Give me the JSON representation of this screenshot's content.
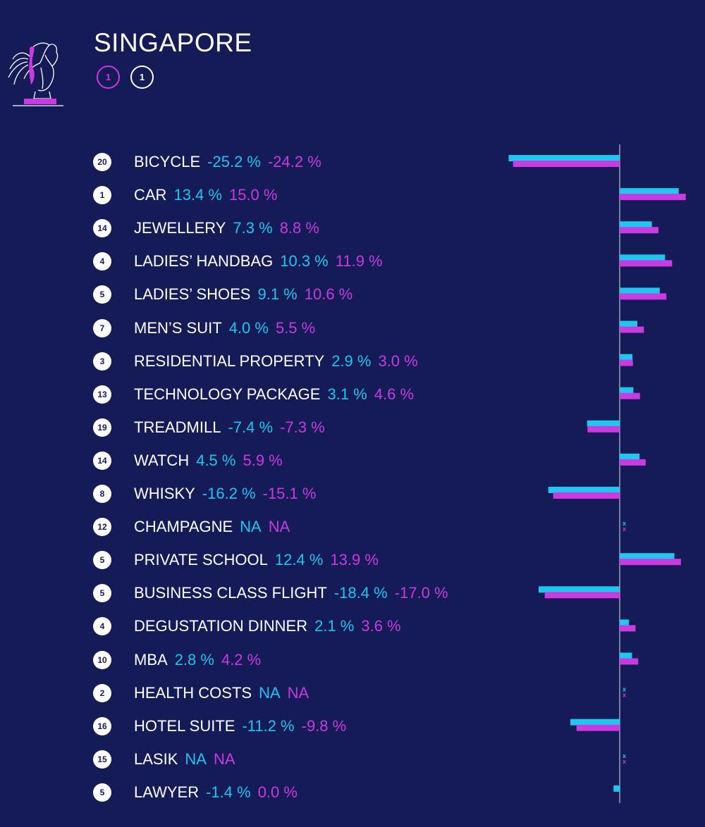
{
  "title": "SINGAPORE",
  "ranks": {
    "magenta": "1",
    "white": "1"
  },
  "colors": {
    "background": "#141b57",
    "cyan": "#1fc6ee",
    "magenta": "#c93ae0",
    "axis": "#9aa0b8"
  },
  "chart_data": {
    "type": "bar",
    "orientation": "horizontal",
    "categories": [
      "BICYCLE",
      "CAR",
      "JEWELLERY",
      "LADIES’ HANDBAG",
      "LADIES’ SHOES",
      "MEN’S SUIT",
      "RESIDENTIAL PROPERTY",
      "TECHNOLOGY PACKAGE",
      "TREADMILL",
      "WATCH",
      "WHISKY",
      "CHAMPAGNE",
      "PRIVATE SCHOOL",
      "BUSINESS CLASS FLIGHT",
      "DEGUSTATION DINNER",
      "MBA",
      "HEALTH COSTS",
      "HOTEL SUITE",
      "LASIK",
      "LAWYER"
    ],
    "ranks": [
      "20",
      "1",
      "14",
      "4",
      "5",
      "7",
      "3",
      "13",
      "19",
      "14",
      "8",
      "12",
      "5",
      "5",
      "4",
      "10",
      "2",
      "16",
      "15",
      "5"
    ],
    "series": [
      {
        "values": [
          -25.2,
          13.4,
          7.3,
          10.3,
          9.1,
          4.0,
          2.9,
          3.1,
          -7.4,
          4.5,
          -16.2,
          null,
          12.4,
          -18.4,
          2.1,
          2.8,
          null,
          -11.2,
          null,
          -1.4
        ]
      },
      {
        "values": [
          -24.2,
          15.0,
          8.8,
          11.9,
          10.6,
          5.5,
          3.0,
          4.6,
          -7.3,
          5.9,
          -15.1,
          null,
          13.9,
          -17.0,
          3.6,
          4.2,
          null,
          -9.8,
          null,
          0.0
        ]
      }
    ],
    "labels_1": [
      "-25.2 %",
      "13.4 %",
      "7.3 %",
      "10.3 %",
      "9.1 %",
      "4.0 %",
      "2.9 %",
      "3.1 %",
      "-7.4 %",
      "4.5 %",
      "-16.2 %",
      "NA",
      "12.4 %",
      "-18.4 %",
      "2.1 %",
      "2.8 %",
      "NA",
      "-11.2 %",
      "NA",
      "-1.4 %"
    ],
    "labels_2": [
      "-24.2 %",
      "15.0 %",
      "8.8 %",
      "11.9 %",
      "10.6 %",
      "5.5 %",
      "3.0 %",
      "4.6 %",
      "-7.3 %",
      "5.9 %",
      "-15.1 %",
      "NA",
      "13.9 %",
      "-17.0 %",
      "3.6 %",
      "4.2 %",
      "NA",
      "-9.8 %",
      "NA",
      "0.0 %"
    ],
    "xlim": [
      -25.2,
      15.0
    ],
    "na_marker": "x"
  }
}
